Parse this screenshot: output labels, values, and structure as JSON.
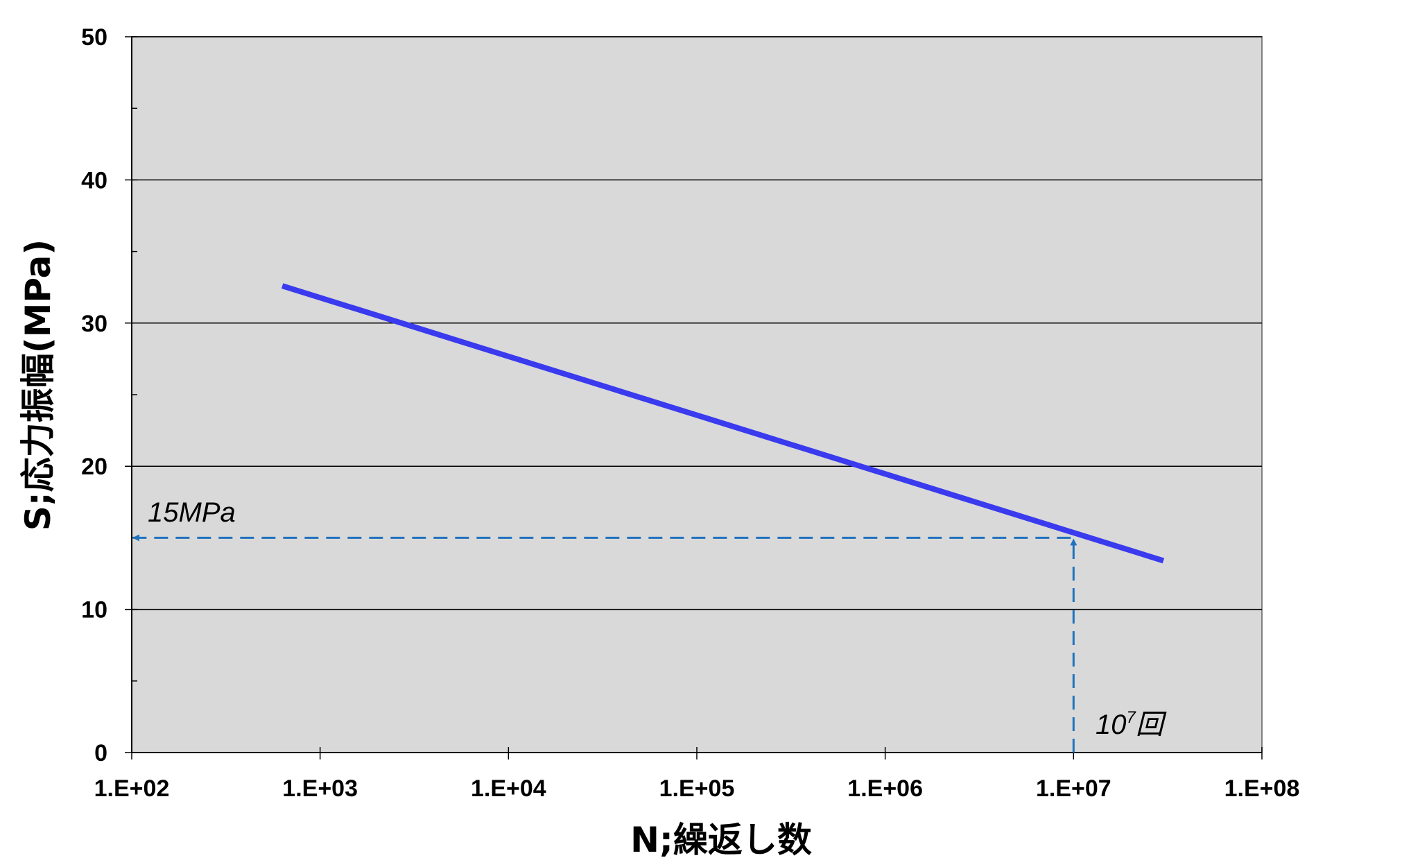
{
  "chart_data": {
    "type": "line",
    "title": "",
    "xlabel": "N;繰返し数",
    "ylabel": "S;応力振幅(MPa)",
    "xscale": "log",
    "xlim": [
      100,
      100000000
    ],
    "ylim": [
      0,
      50
    ],
    "x_tick_labels": [
      "1.E+02",
      "1.E+03",
      "1.E+04",
      "1.E+05",
      "1.E+06",
      "1.E+07",
      "1.E+08"
    ],
    "y_tick_labels": [
      "0",
      "10",
      "20",
      "30",
      "40",
      "50"
    ],
    "y_gridlines": [
      10,
      20,
      30,
      40,
      50
    ],
    "grid": "horizontal major",
    "plot_background": "#d9d9d9",
    "series": [
      {
        "color": "#3a3aee",
        "x": [
          630,
          30000000
        ],
        "y": [
          32.6,
          13.4
        ]
      }
    ],
    "reference_lines": {
      "color": "#1f72bf",
      "style": "dashed",
      "point": {
        "x": 10000000,
        "y": 15
      }
    },
    "annotations": {
      "stress_label": "15MPa",
      "cycles_base": "10",
      "cycles_exp": "7",
      "cycles_unit": "回"
    }
  }
}
